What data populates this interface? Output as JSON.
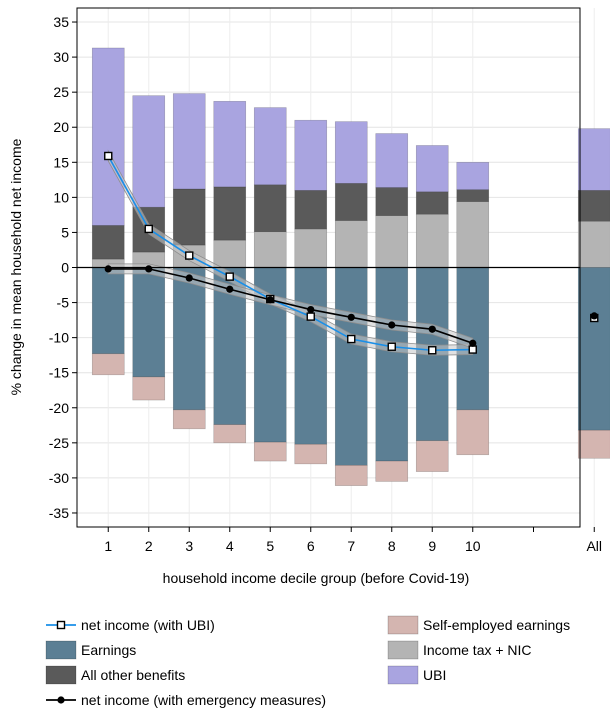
{
  "chart_data": {
    "type": "bar",
    "categories": [
      "1",
      "2",
      "3",
      "4",
      "5",
      "6",
      "7",
      "8",
      "9",
      "10",
      "All"
    ],
    "xlabel": "household income decile group (before Covid-19)",
    "ylabel": "% change in mean household net income",
    "ylim": [
      -37,
      37
    ],
    "yticks": [
      35,
      30,
      25,
      20,
      15,
      10,
      5,
      0,
      -5,
      -10,
      -15,
      -20,
      -25,
      -30,
      -35
    ],
    "grid": true,
    "legend_position": "bottom",
    "stacked_positive": [
      {
        "name": "Income tax + NIC",
        "color": "#b4b4b4",
        "values": [
          1.2,
          2.2,
          3.2,
          3.9,
          5.1,
          5.5,
          6.7,
          7.4,
          7.6,
          9.4,
          6.6
        ]
      },
      {
        "name": "All other benefits",
        "color": "#5a5a5a",
        "values": [
          4.8,
          6.4,
          8.0,
          7.6,
          6.7,
          5.5,
          5.3,
          4.0,
          3.2,
          1.7,
          4.4
        ]
      },
      {
        "name": "UBI",
        "color": "#a9a4e0",
        "values": [
          25.3,
          15.9,
          13.6,
          12.2,
          11.0,
          10.0,
          8.8,
          7.7,
          6.6,
          3.9,
          8.8
        ]
      }
    ],
    "stacked_negative": [
      {
        "name": "Earnings",
        "color": "#5c7f94",
        "values": [
          -12.3,
          -15.6,
          -20.3,
          -22.4,
          -24.9,
          -25.2,
          -28.2,
          -27.6,
          -24.7,
          -20.3,
          -23.2
        ]
      },
      {
        "name": "Self-employed earnings",
        "color": "#d4b5b0",
        "values": [
          -3.0,
          -3.3,
          -2.7,
          -2.6,
          -2.7,
          -2.8,
          -2.9,
          -2.9,
          -4.4,
          -6.4,
          -4.0
        ]
      }
    ],
    "lines": [
      {
        "name": "net income (with UBI)",
        "color": "#1a8fe8",
        "marker": "square",
        "values": [
          15.9,
          5.5,
          1.7,
          -1.3,
          -4.5,
          -7.0,
          -10.2,
          -11.3,
          -11.8,
          -11.7
        ],
        "all_value": -7.2
      },
      {
        "name": "net income (with emergency measures)",
        "color": "#000000",
        "marker": "circle",
        "values": [
          -0.2,
          -0.2,
          -1.5,
          -3.1,
          -4.6,
          -6.0,
          -7.1,
          -8.2,
          -8.8,
          -10.8
        ],
        "all_value": -6.9
      }
    ],
    "legend": [
      {
        "name": "net income (with UBI)",
        "kind": "line-square",
        "color": "#1a8fe8"
      },
      {
        "name": "Self-employed earnings",
        "kind": "box",
        "color": "#d4b5b0"
      },
      {
        "name": "Earnings",
        "kind": "box",
        "color": "#5c7f94"
      },
      {
        "name": "Income tax + NIC",
        "kind": "box",
        "color": "#b4b4b4"
      },
      {
        "name": "All other benefits",
        "kind": "box",
        "color": "#5a5a5a"
      },
      {
        "name": "UBI",
        "kind": "box",
        "color": "#a9a4e0"
      },
      {
        "name": "net income (with emergency measures)",
        "kind": "line-circle",
        "color": "#000000"
      }
    ]
  }
}
